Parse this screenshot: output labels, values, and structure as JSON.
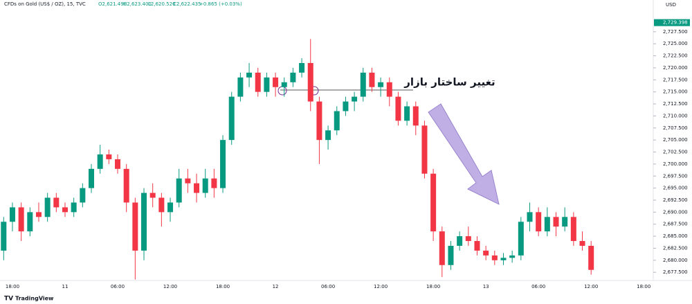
{
  "header": {
    "symbol": "CFDs on Gold (US$ / OZ), 15, TVC",
    "open": "O2,621.490",
    "high": "H2,623.400",
    "low": "L2,620.520",
    "close": "C2,622.435",
    "change": "+0.865 (+0.03%)",
    "currency": "USD",
    "brand": "TradingView"
  },
  "chart_data": {
    "type": "candlestick",
    "annotation": "تغییر ساختار بازار",
    "up_color": "#089981",
    "down_color": "#f23645",
    "last_price": {
      "value": 2729.398,
      "label": "2,729.398"
    },
    "ylim": [
      2675.8,
      2734.1
    ],
    "yticks": [
      {
        "value": 2677.5,
        "label": "2,677.500"
      },
      {
        "value": 2680,
        "label": "2,680.000"
      },
      {
        "value": 2682.5,
        "label": "2,682.500"
      },
      {
        "value": 2685,
        "label": "2,685.000"
      },
      {
        "value": 2687.5,
        "label": "2,687.500"
      },
      {
        "value": 2690,
        "label": "2,690.000"
      },
      {
        "value": 2692.5,
        "label": "2,692.500"
      },
      {
        "value": 2695,
        "label": "2,695.000"
      },
      {
        "value": 2697.5,
        "label": "2,697.500"
      },
      {
        "value": 2700,
        "label": "2,700.000"
      },
      {
        "value": 2702.5,
        "label": "2,702.500"
      },
      {
        "value": 2705,
        "label": "2,705.000"
      },
      {
        "value": 2707.5,
        "label": "2,707.500"
      },
      {
        "value": 2710,
        "label": "2,710.000"
      },
      {
        "value": 2712.5,
        "label": "2,712.500"
      },
      {
        "value": 2715,
        "label": "2,715.000"
      },
      {
        "value": 2717.5,
        "label": "2,717.500"
      },
      {
        "value": 2720,
        "label": "2,720.000"
      },
      {
        "value": 2722.5,
        "label": "2,722.500"
      },
      {
        "value": 2725,
        "label": "2,725.000"
      },
      {
        "value": 2727.5,
        "label": "2,727.500"
      }
    ],
    "xticks": [
      "18:00",
      "11",
      "06:00",
      "12:00",
      "18:00",
      "12",
      "06:00",
      "12:00",
      "18:00",
      "13",
      "06:00",
      "12:00",
      "18:00"
    ],
    "ohlc": [
      [
        2682,
        2689,
        2680,
        2688
      ],
      [
        2688,
        2692,
        2686,
        2691
      ],
      [
        2691,
        2692,
        2684,
        2686
      ],
      [
        2686,
        2691,
        2685,
        2690
      ],
      [
        2690,
        2692,
        2688,
        2689
      ],
      [
        2689,
        2694,
        2688,
        2693
      ],
      [
        2693,
        2694,
        2690,
        2691
      ],
      [
        2691,
        2692,
        2689,
        2690
      ],
      [
        2690,
        2693,
        2689,
        2692
      ],
      [
        2692,
        2696,
        2691,
        2695
      ],
      [
        2695,
        2700,
        2694,
        2699
      ],
      [
        2699,
        2704,
        2698,
        2702
      ],
      [
        2702,
        2703,
        2700,
        2701
      ],
      [
        2701,
        2702,
        2698,
        2699
      ],
      [
        2699,
        2700,
        2690,
        2692
      ],
      [
        2692,
        2693,
        2676,
        2682
      ],
      [
        2682,
        2695,
        2680,
        2694
      ],
      [
        2694,
        2696,
        2691,
        2693
      ],
      [
        2693,
        2694,
        2687,
        2690
      ],
      [
        2690,
        2693,
        2688,
        2692
      ],
      [
        2692,
        2699,
        2691,
        2697
      ],
      [
        2697,
        2699,
        2694,
        2696
      ],
      [
        2696,
        2698,
        2692,
        2694
      ],
      [
        2694,
        2699,
        2693,
        2697
      ],
      [
        2697,
        2699,
        2693,
        2695
      ],
      [
        2695,
        2706,
        2694,
        2705
      ],
      [
        2705,
        2715,
        2704,
        2714
      ],
      [
        2714,
        2719,
        2713,
        2718
      ],
      [
        2718,
        2721,
        2716,
        2719
      ],
      [
        2719,
        2720,
        2714,
        2715
      ],
      [
        2715,
        2719,
        2714,
        2718
      ],
      [
        2718,
        2719,
        2714,
        2716
      ],
      [
        2716,
        2718,
        2714,
        2717
      ],
      [
        2717,
        2720,
        2716,
        2719
      ],
      [
        2719,
        2722,
        2718,
        2721
      ],
      [
        2721,
        2726,
        2711,
        2713
      ],
      [
        2713,
        2714,
        2700,
        2705
      ],
      [
        2705,
        2708,
        2703,
        2707
      ],
      [
        2707,
        2712,
        2706,
        2711
      ],
      [
        2711,
        2714,
        2710,
        2713
      ],
      [
        2713,
        2715,
        2711,
        2714
      ],
      [
        2714,
        2720,
        2713,
        2719
      ],
      [
        2719,
        2720,
        2715,
        2716
      ],
      [
        2716,
        2718,
        2714,
        2717
      ],
      [
        2717,
        2718,
        2712,
        2714
      ],
      [
        2714,
        2715,
        2708,
        2709
      ],
      [
        2709,
        2713,
        2708,
        2712
      ],
      [
        2712,
        2713,
        2706,
        2708
      ],
      [
        2708,
        2709,
        2697,
        2698
      ],
      [
        2698,
        2699,
        2684,
        2686
      ],
      [
        2686,
        2687,
        2676.5,
        2679
      ],
      [
        2679,
        2684,
        2678,
        2683
      ],
      [
        2683,
        2686,
        2682,
        2685
      ],
      [
        2685,
        2687,
        2683,
        2684
      ],
      [
        2684,
        2685,
        2681,
        2682
      ],
      [
        2682,
        2683,
        2680,
        2681
      ],
      [
        2681,
        2682,
        2679,
        2680
      ],
      [
        2680,
        2681.5,
        2679,
        2680.5
      ],
      [
        2680.5,
        2682,
        2679.5,
        2681
      ],
      [
        2681,
        2689,
        2680,
        2688
      ],
      [
        2688,
        2692,
        2686,
        2690
      ],
      [
        2690,
        2691,
        2685,
        2686
      ],
      [
        2686,
        2691,
        2685,
        2689
      ],
      [
        2689,
        2690,
        2685,
        2687
      ],
      [
        2687,
        2691,
        2686,
        2689
      ],
      [
        2689,
        2690,
        2683,
        2684
      ],
      [
        2684,
        2686,
        2682,
        2683
      ],
      [
        2683,
        2684,
        2677,
        2678
      ]
    ]
  }
}
